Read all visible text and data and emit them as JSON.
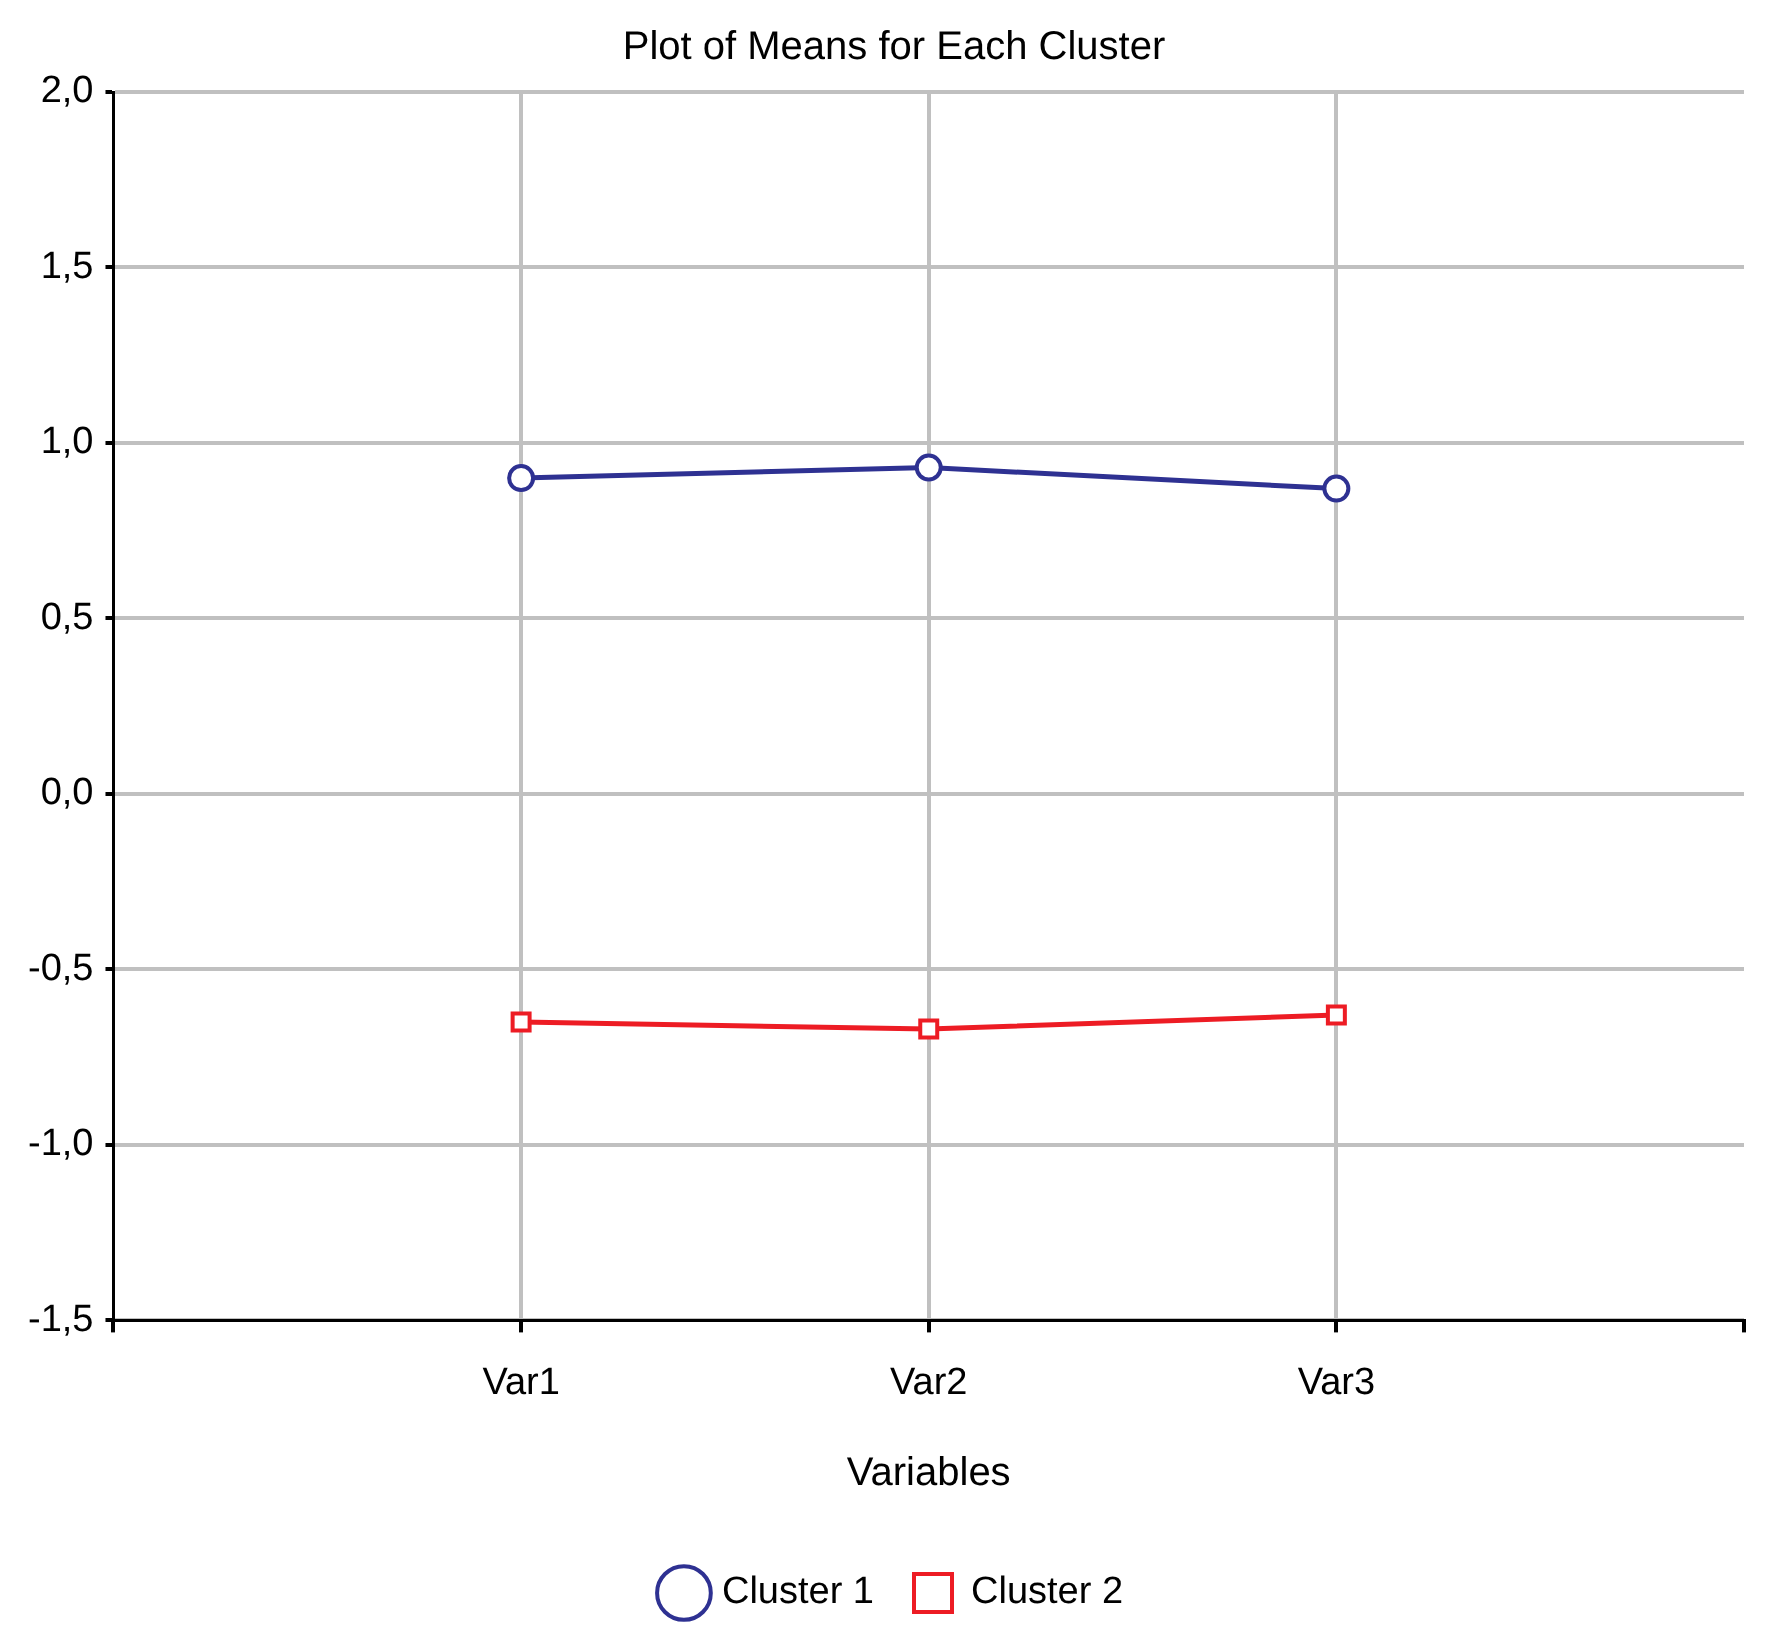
{
  "chart_data": {
    "type": "line",
    "title": "Plot of Means for Each Cluster",
    "xlabel": "Variables",
    "categories": [
      null,
      "Var1",
      "Var2",
      "Var3",
      null
    ],
    "series": [
      {
        "name": "Cluster 1",
        "color": "#2e3192",
        "marker": "circle",
        "values": [
          null,
          0.9,
          0.93,
          0.87,
          null
        ]
      },
      {
        "name": "Cluster 2",
        "color": "#ed1c24",
        "marker": "square",
        "values": [
          null,
          -0.65,
          -0.67,
          -0.63,
          null
        ]
      }
    ],
    "ylim": [
      -1.5,
      2.0
    ],
    "yticks": [
      {
        "value": -1.5,
        "label": "-1,5"
      },
      {
        "value": -1.0,
        "label": "-1,0"
      },
      {
        "value": -0.5,
        "label": "-0,5"
      },
      {
        "value": 0,
        "label": "0,0"
      },
      {
        "value": 0.5,
        "label": "0,5"
      },
      {
        "value": 1.0,
        "label": "1,0"
      },
      {
        "value": 1.5,
        "label": "1,5"
      },
      {
        "value": 2.0,
        "label": "2,0"
      }
    ],
    "grid": true,
    "legend": "bottom",
    "line_style": "solid"
  }
}
